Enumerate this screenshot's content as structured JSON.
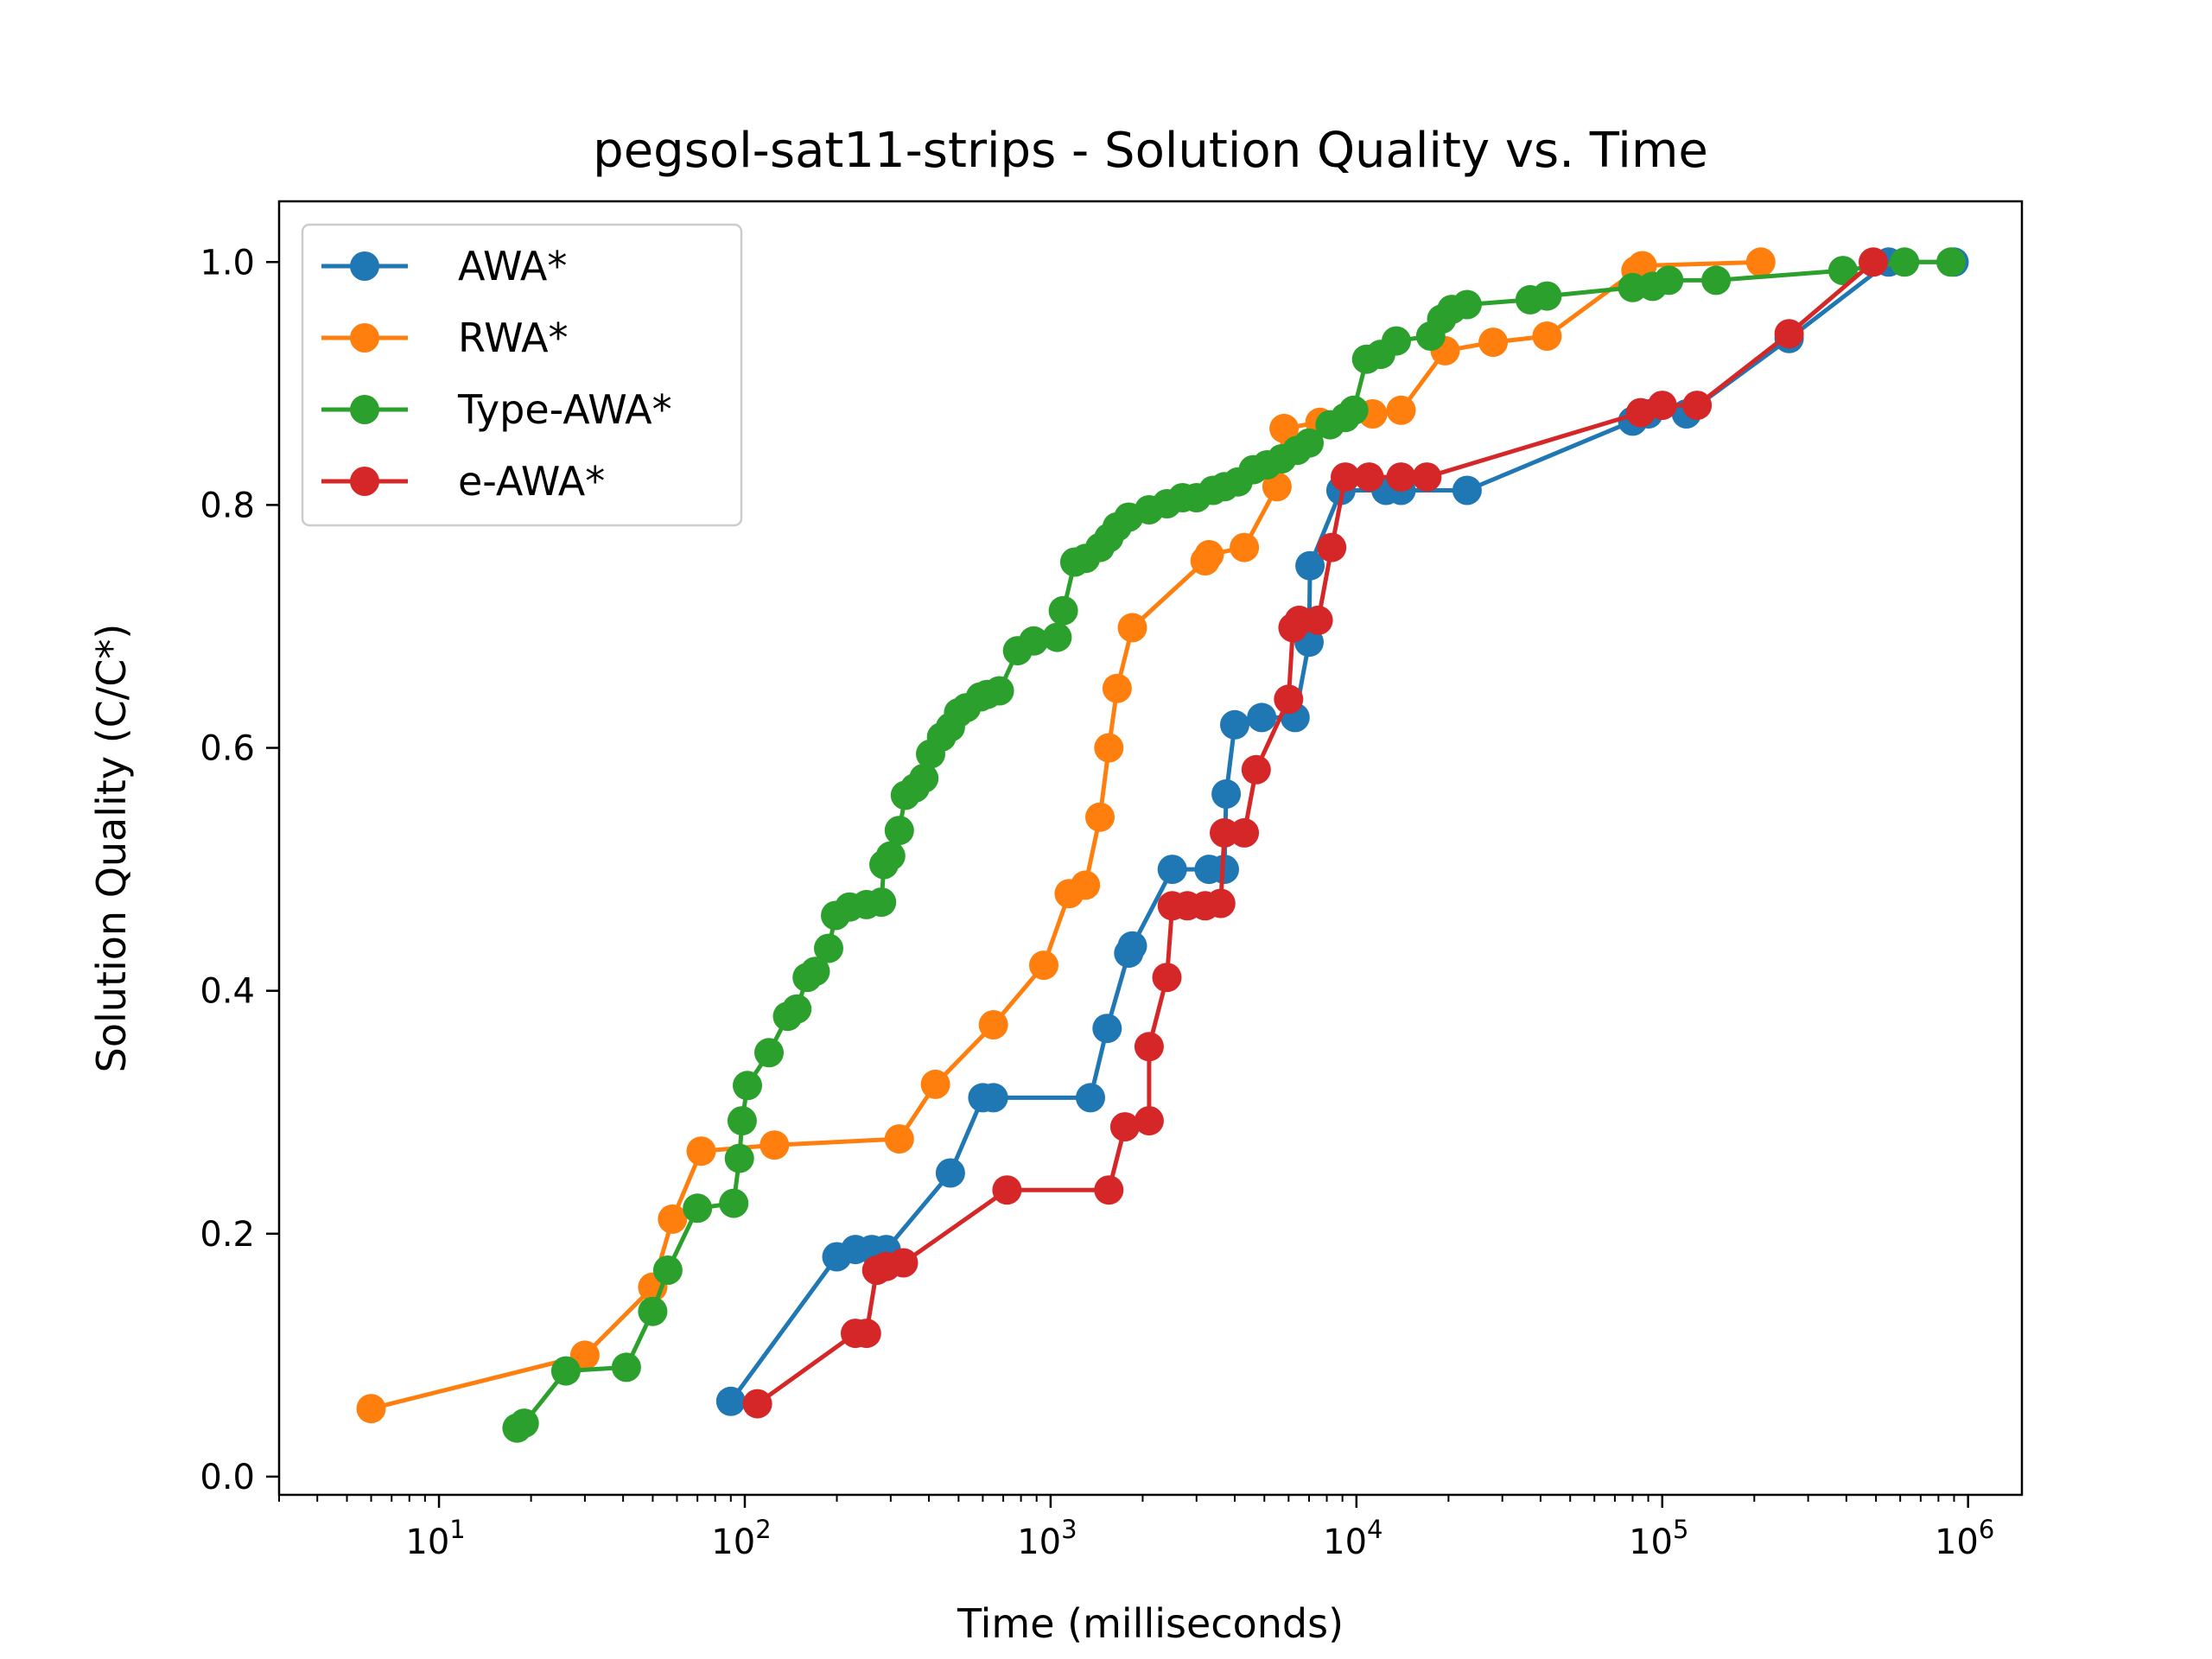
{
  "chart_data": {
    "type": "line",
    "title": "pegsol-sat11-strips - Solution Quality vs. Time",
    "xlabel": "Time (milliseconds)",
    "ylabel": "Solution Quality (C/C*)",
    "x_scale": "log",
    "xlim": [
      3,
      1500000
    ],
    "ylim": [
      -0.015,
      1.05
    ],
    "x_ticks": [
      {
        "value": 10,
        "base": "10",
        "exp": "1"
      },
      {
        "value": 100,
        "base": "10",
        "exp": "2"
      },
      {
        "value": 1000,
        "base": "10",
        "exp": "3"
      },
      {
        "value": 10000,
        "base": "10",
        "exp": "4"
      },
      {
        "value": 100000,
        "base": "10",
        "exp": "5"
      },
      {
        "value": 1000000,
        "base": "10",
        "exp": "6"
      }
    ],
    "y_ticks": [
      {
        "value": 0.0,
        "label": "0.0"
      },
      {
        "value": 0.2,
        "label": "0.2"
      },
      {
        "value": 0.4,
        "label": "0.4"
      },
      {
        "value": 0.6,
        "label": "0.6"
      },
      {
        "value": 0.8,
        "label": "0.8"
      },
      {
        "value": 1.0,
        "label": "1.0"
      }
    ],
    "grid": false,
    "legend_position": "upper-left",
    "series": [
      {
        "name": "AWA*",
        "color": "#1f77b4",
        "points": [
          [
            90,
            0.062
          ],
          [
            200,
            0.181
          ],
          [
            230,
            0.187
          ],
          [
            260,
            0.187
          ],
          [
            290,
            0.187
          ],
          [
            470,
            0.25
          ],
          [
            600,
            0.312
          ],
          [
            650,
            0.312
          ],
          [
            1350,
            0.312
          ],
          [
            1530,
            0.369
          ],
          [
            1800,
            0.431
          ],
          [
            1850,
            0.437
          ],
          [
            2500,
            0.5
          ],
          [
            3300,
            0.5
          ],
          [
            3700,
            0.5
          ],
          [
            3750,
            0.562
          ],
          [
            4000,
            0.619
          ],
          [
            4900,
            0.625
          ],
          [
            6300,
            0.625
          ],
          [
            7000,
            0.687
          ],
          [
            7050,
            0.75
          ],
          [
            8900,
            0.812
          ],
          [
            12500,
            0.812
          ],
          [
            14000,
            0.812
          ],
          [
            23000,
            0.812
          ],
          [
            80000,
            0.869
          ],
          [
            90000,
            0.875
          ],
          [
            120000,
            0.875
          ],
          [
            260000,
            0.937
          ],
          [
            550000,
            1.0
          ],
          [
            900000,
            1.0
          ]
        ]
      },
      {
        "name": "RWA*",
        "color": "#ff7f0e",
        "points": [
          [
            6,
            0.056
          ],
          [
            30,
            0.1
          ],
          [
            50,
            0.156
          ],
          [
            58,
            0.212
          ],
          [
            72,
            0.268
          ],
          [
            125,
            0.273
          ],
          [
            320,
            0.278
          ],
          [
            420,
            0.323
          ],
          [
            650,
            0.372
          ],
          [
            950,
            0.421
          ],
          [
            1150,
            0.48
          ],
          [
            1300,
            0.487
          ],
          [
            1450,
            0.543
          ],
          [
            1550,
            0.6
          ],
          [
            1650,
            0.649
          ],
          [
            1850,
            0.699
          ],
          [
            3200,
            0.754
          ],
          [
            3300,
            0.759
          ],
          [
            4300,
            0.765
          ],
          [
            5500,
            0.815
          ],
          [
            5800,
            0.863
          ],
          [
            7600,
            0.868
          ],
          [
            11300,
            0.875
          ],
          [
            14000,
            0.878
          ],
          [
            19500,
            0.927
          ],
          [
            28000,
            0.934
          ],
          [
            42000,
            0.939
          ],
          [
            82000,
            0.993
          ],
          [
            86000,
            0.997
          ],
          [
            210000,
            1.0
          ]
        ]
      },
      {
        "name": "Type-AWA*",
        "color": "#2ca02c",
        "points": [
          [
            18,
            0.04
          ],
          [
            19,
            0.044
          ],
          [
            26,
            0.087
          ],
          [
            41,
            0.09
          ],
          [
            50,
            0.136
          ],
          [
            56,
            0.17
          ],
          [
            70,
            0.221
          ],
          [
            92,
            0.225
          ],
          [
            96,
            0.262
          ],
          [
            98,
            0.293
          ],
          [
            102,
            0.322
          ],
          [
            120,
            0.349
          ],
          [
            138,
            0.379
          ],
          [
            148,
            0.385
          ],
          [
            160,
            0.411
          ],
          [
            170,
            0.416
          ],
          [
            188,
            0.435
          ],
          [
            198,
            0.462
          ],
          [
            220,
            0.469
          ],
          [
            250,
            0.471
          ],
          [
            280,
            0.473
          ],
          [
            285,
            0.504
          ],
          [
            300,
            0.511
          ],
          [
            320,
            0.532
          ],
          [
            335,
            0.561
          ],
          [
            360,
            0.567
          ],
          [
            385,
            0.575
          ],
          [
            405,
            0.595
          ],
          [
            440,
            0.609
          ],
          [
            470,
            0.617
          ],
          [
            500,
            0.629
          ],
          [
            530,
            0.633
          ],
          [
            590,
            0.642
          ],
          [
            620,
            0.644
          ],
          [
            680,
            0.647
          ],
          [
            780,
            0.68
          ],
          [
            880,
            0.688
          ],
          [
            1050,
            0.691
          ],
          [
            1100,
            0.713
          ],
          [
            1200,
            0.753
          ],
          [
            1300,
            0.756
          ],
          [
            1450,
            0.765
          ],
          [
            1550,
            0.773
          ],
          [
            1650,
            0.782
          ],
          [
            1800,
            0.79
          ],
          [
            2100,
            0.796
          ],
          [
            2400,
            0.801
          ],
          [
            2700,
            0.806
          ],
          [
            3000,
            0.806
          ],
          [
            3400,
            0.812
          ],
          [
            3700,
            0.815
          ],
          [
            4100,
            0.819
          ],
          [
            4600,
            0.829
          ],
          [
            5100,
            0.833
          ],
          [
            5700,
            0.838
          ],
          [
            6400,
            0.845
          ],
          [
            7000,
            0.851
          ],
          [
            8200,
            0.866
          ],
          [
            9200,
            0.872
          ],
          [
            9800,
            0.878
          ],
          [
            10800,
            0.92
          ],
          [
            12000,
            0.924
          ],
          [
            13500,
            0.935
          ],
          [
            17500,
            0.939
          ],
          [
            19000,
            0.953
          ],
          [
            20500,
            0.961
          ],
          [
            23000,
            0.965
          ],
          [
            37000,
            0.969
          ],
          [
            42000,
            0.972
          ],
          [
            80000,
            0.979
          ],
          [
            93000,
            0.98
          ],
          [
            105000,
            0.985
          ],
          [
            150000,
            0.985
          ],
          [
            390000,
            0.993
          ],
          [
            620000,
            1.0
          ],
          [
            880000,
            1.0
          ]
        ]
      },
      {
        "name": "e-AWA*",
        "color": "#d62728",
        "points": [
          [
            110,
            0.06
          ],
          [
            230,
            0.118
          ],
          [
            250,
            0.118
          ],
          [
            270,
            0.17
          ],
          [
            290,
            0.173
          ],
          [
            330,
            0.176
          ],
          [
            720,
            0.236
          ],
          [
            1550,
            0.236
          ],
          [
            1750,
            0.288
          ],
          [
            2100,
            0.293
          ],
          [
            2100,
            0.354
          ],
          [
            2400,
            0.411
          ],
          [
            2500,
            0.47
          ],
          [
            2800,
            0.47
          ],
          [
            3200,
            0.47
          ],
          [
            3600,
            0.472
          ],
          [
            3700,
            0.53
          ],
          [
            4300,
            0.53
          ],
          [
            4700,
            0.582
          ],
          [
            6000,
            0.64
          ],
          [
            6200,
            0.699
          ],
          [
            6500,
            0.705
          ],
          [
            7500,
            0.705
          ],
          [
            8300,
            0.765
          ],
          [
            9200,
            0.823
          ],
          [
            11000,
            0.823
          ],
          [
            14000,
            0.823
          ],
          [
            17000,
            0.823
          ],
          [
            85000,
            0.876
          ],
          [
            100000,
            0.882
          ],
          [
            130000,
            0.882
          ],
          [
            260000,
            0.941
          ],
          [
            490000,
            1.0
          ]
        ]
      }
    ]
  }
}
